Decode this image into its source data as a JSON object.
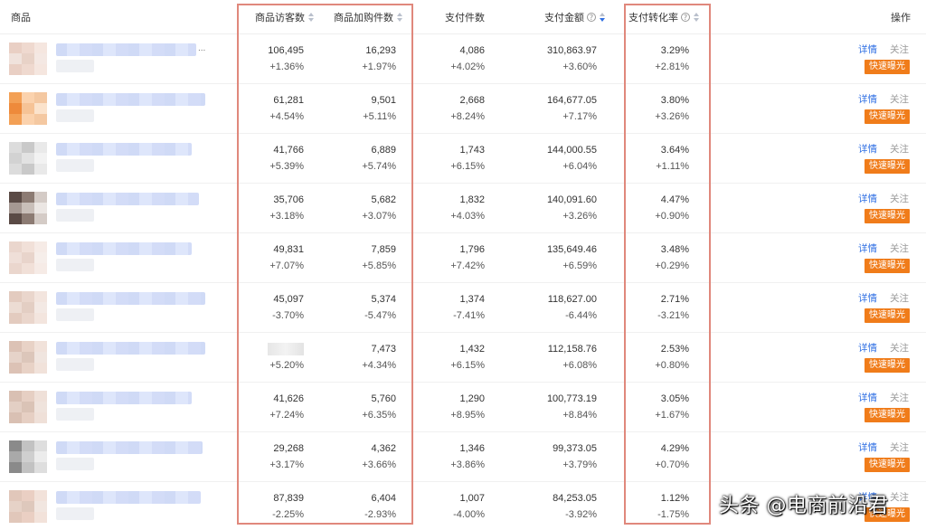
{
  "columns": {
    "product": "商品",
    "visitors": "商品访客数",
    "cart": "商品加购件数",
    "pay_count": "支付件数",
    "pay_amount": "支付金额",
    "conversion": "支付转化率",
    "ops": "操作"
  },
  "help_glyph": "?",
  "actions": {
    "detail": "详情",
    "follow": "关注",
    "quick_expose": "快速曝光"
  },
  "rows": [
    {
      "visitors": "106,495",
      "visitors_delta": "+1.36%",
      "cart": "16,293",
      "cart_delta": "+1.97%",
      "pay_count": "4,086",
      "pay_count_delta": "+4.02%",
      "pay_amount": "310,863.97",
      "pay_amount_delta": "+3.60%",
      "conversion": "3.29%",
      "conversion_delta": "+2.81%",
      "title_suffix": "..."
    },
    {
      "visitors": "61,281",
      "visitors_delta": "+4.54%",
      "cart": "9,501",
      "cart_delta": "+5.11%",
      "pay_count": "2,668",
      "pay_count_delta": "+8.24%",
      "pay_amount": "164,677.05",
      "pay_amount_delta": "+7.17%",
      "conversion": "3.80%",
      "conversion_delta": "+3.26%"
    },
    {
      "visitors": "41,766",
      "visitors_delta": "+5.39%",
      "cart": "6,889",
      "cart_delta": "+5.74%",
      "pay_count": "1,743",
      "pay_count_delta": "+6.15%",
      "pay_amount": "144,000.55",
      "pay_amount_delta": "+6.04%",
      "conversion": "3.64%",
      "conversion_delta": "+1.11%"
    },
    {
      "visitors": "35,706",
      "visitors_delta": "+3.18%",
      "cart": "5,682",
      "cart_delta": "+3.07%",
      "pay_count": "1,832",
      "pay_count_delta": "+4.03%",
      "pay_amount": "140,091.60",
      "pay_amount_delta": "+3.26%",
      "conversion": "4.47%",
      "conversion_delta": "+0.90%"
    },
    {
      "visitors": "49,831",
      "visitors_delta": "+7.07%",
      "cart": "7,859",
      "cart_delta": "+5.85%",
      "pay_count": "1,796",
      "pay_count_delta": "+7.42%",
      "pay_amount": "135,649.46",
      "pay_amount_delta": "+6.59%",
      "conversion": "3.48%",
      "conversion_delta": "+0.29%"
    },
    {
      "visitors": "45,097",
      "visitors_delta": "-3.70%",
      "cart": "5,374",
      "cart_delta": "-5.47%",
      "pay_count": "1,374",
      "pay_count_delta": "-7.41%",
      "pay_amount": "118,627.00",
      "pay_amount_delta": "-6.44%",
      "conversion": "2.71%",
      "conversion_delta": "-3.21%"
    },
    {
      "visitors": "",
      "visitors_delta": "+5.20%",
      "cart": "7,473",
      "cart_delta": "+4.34%",
      "pay_count": "1,432",
      "pay_count_delta": "+6.15%",
      "pay_amount": "112,158.76",
      "pay_amount_delta": "+6.08%",
      "conversion": "2.53%",
      "conversion_delta": "+0.80%"
    },
    {
      "visitors": "41,626",
      "visitors_delta": "+7.24%",
      "cart": "5,760",
      "cart_delta": "+6.35%",
      "pay_count": "1,290",
      "pay_count_delta": "+8.95%",
      "pay_amount": "100,773.19",
      "pay_amount_delta": "+8.84%",
      "conversion": "3.05%",
      "conversion_delta": "+1.67%"
    },
    {
      "visitors": "29,268",
      "visitors_delta": "+3.17%",
      "cart": "4,362",
      "cart_delta": "+3.66%",
      "pay_count": "1,346",
      "pay_count_delta": "+3.86%",
      "pay_amount": "99,373.05",
      "pay_amount_delta": "+3.79%",
      "conversion": "4.29%",
      "conversion_delta": "+0.70%"
    },
    {
      "visitors": "87,839",
      "visitors_delta": "-2.25%",
      "cart": "6,404",
      "cart_delta": "-2.93%",
      "pay_count": "1,007",
      "pay_count_delta": "-4.00%",
      "pay_amount": "84,253.05",
      "pay_amount_delta": "-3.92%",
      "conversion": "1.12%",
      "conversion_delta": "-1.75%"
    }
  ],
  "watermark": "头条 @电商前沿君",
  "colors": {
    "link": "#2f6fe3",
    "button": "#f07c1a",
    "highlight_box": "#e0887c",
    "sort_active": "#2f6fe3"
  }
}
